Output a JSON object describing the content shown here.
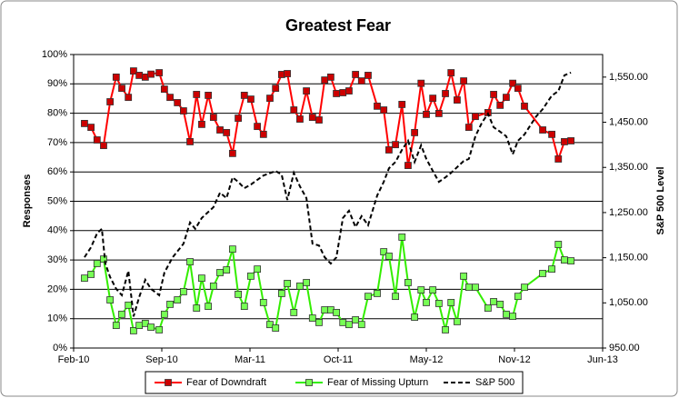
{
  "chart_data": {
    "type": "line",
    "title": "Greatest Fear",
    "y_label": "Responses",
    "y2_label": "S&P 500 Level",
    "x": [
      40235,
      40250,
      40264,
      40279,
      40294,
      40308,
      40321,
      40336,
      40348,
      40361,
      40375,
      40388,
      40407,
      40419,
      40432,
      40449,
      40463,
      40478,
      40493,
      40505,
      40520,
      40532,
      40547,
      40562,
      40576,
      40589,
      40603,
      40618,
      40633,
      40647,
      40662,
      40675,
      40689,
      40702,
      40717,
      40731,
      40746,
      40760,
      40775,
      40788,
      40802,
      40815,
      40830,
      40844,
      40859,
      40873,
      40888,
      40909,
      40924,
      40936,
      40951,
      40966,
      40980,
      40995,
      41010,
      41022,
      41037,
      41051,
      41066,
      41079,
      41093,
      41108,
      41120,
      41135,
      41164,
      41177,
      41192,
      41206,
      41221,
      41233,
      41248,
      41290,
      41311,
      41326,
      41340,
      41355
    ],
    "xlim": [
      40210,
      41428
    ],
    "xticks": [
      {
        "value": 40210,
        "label": "Feb-10"
      },
      {
        "value": 40413,
        "label": "Sep-10"
      },
      {
        "value": 40616,
        "label": "Mar-11"
      },
      {
        "value": 40819,
        "label": "Oct-11"
      },
      {
        "value": 41022,
        "label": "May-12"
      },
      {
        "value": 41225,
        "label": "Nov-12"
      },
      {
        "value": 41428,
        "label": "Jun-13"
      }
    ],
    "ylim": [
      0,
      100
    ],
    "yticks": [
      {
        "value": 0,
        "label": "0%"
      },
      {
        "value": 10,
        "label": "10%"
      },
      {
        "value": 20,
        "label": "20%"
      },
      {
        "value": 30,
        "label": "30%"
      },
      {
        "value": 40,
        "label": "40%"
      },
      {
        "value": 50,
        "label": "50%"
      },
      {
        "value": 60,
        "label": "60%"
      },
      {
        "value": 70,
        "label": "70%"
      },
      {
        "value": 80,
        "label": "80%"
      },
      {
        "value": 90,
        "label": "90%"
      },
      {
        "value": 100,
        "label": "100%"
      }
    ],
    "y2lim": [
      950,
      1600
    ],
    "y2ticks": [
      {
        "value": 950,
        "label": "950.00"
      },
      {
        "value": 1050,
        "label": "1,050.00"
      },
      {
        "value": 1150,
        "label": "1,150.00"
      },
      {
        "value": 1250,
        "label": "1,250.00"
      },
      {
        "value": 1350,
        "label": "1,350.00"
      },
      {
        "value": 1450,
        "label": "1,450.00"
      },
      {
        "value": 1550,
        "label": "1,550.00"
      }
    ],
    "grid": true,
    "legend": "bottom",
    "series": [
      {
        "name": "Fear of Downdraft",
        "color": "#ff0000",
        "marker_color": "#cc0000",
        "values": [
          76.5,
          75.2,
          70.9,
          69,
          83.9,
          92.3,
          88.5,
          85.4,
          94.4,
          92.9,
          92.3,
          93.3,
          93.8,
          88.2,
          85.4,
          83.6,
          80.8,
          70.3,
          86.4,
          76.2,
          86.1,
          78.6,
          74.3,
          73.4,
          66.3,
          78.3,
          86.1,
          84.8,
          75.5,
          72.8,
          85.1,
          88.5,
          93.2,
          93.5,
          81.1,
          78,
          87.6,
          78.6,
          77.7,
          91.3,
          92.3,
          86.7,
          87,
          87.6,
          93.2,
          91,
          92.9,
          82.4,
          81.1,
          67.5,
          69.3,
          83,
          62.2,
          73.4,
          90.2,
          79.6,
          85.1,
          79.9,
          86.7,
          93.8,
          84.5,
          91,
          75.2,
          78.9,
          80.2,
          86.4,
          82.7,
          85.4,
          90.2,
          88.5,
          82.4,
          74.3,
          72.8,
          64.4,
          70.3,
          70.6
        ]
      },
      {
        "name": "Fear of Missing Upturn",
        "color": "#33ee00",
        "marker_color": "#77ff55",
        "values": [
          23.8,
          25.1,
          28.8,
          30.3,
          16.4,
          7.7,
          11.5,
          14.6,
          5.9,
          7.7,
          8.4,
          7.1,
          6.2,
          11.5,
          14.9,
          16.4,
          19.2,
          29.4,
          13.6,
          23.8,
          14.2,
          21.1,
          25.7,
          26.6,
          33.7,
          18.3,
          14.2,
          24.5,
          26.9,
          15.5,
          8,
          6.8,
          18.6,
          22,
          12.1,
          21.1,
          22.3,
          10.2,
          8.7,
          13,
          13,
          12.1,
          8.7,
          8,
          9.6,
          8,
          17.6,
          18.6,
          32.8,
          31.3,
          17.6,
          37.8,
          22.3,
          10.5,
          19.8,
          15.5,
          19.8,
          15.2,
          6.2,
          15.5,
          9,
          24.5,
          20.7,
          20.7,
          13.6,
          15.8,
          14.9,
          11.5,
          10.8,
          17.6,
          20.7,
          25.4,
          26.9,
          35.3,
          30,
          29.7
        ]
      },
      {
        "name": "S&P 500",
        "color": "#000000",
        "axis": "y2",
        "dashed": true,
        "x": [
          40235,
          40250,
          40264,
          40275,
          40283,
          40294,
          40308,
          40321,
          40336,
          40348,
          40361,
          40375,
          40388,
          40407,
          40419,
          40438,
          40463,
          40478,
          40490,
          40505,
          40532,
          40547,
          40562,
          40576,
          40589,
          40603,
          40618,
          40647,
          40675,
          40689,
          40702,
          40717,
          40731,
          40746,
          40760,
          40775,
          40788,
          40802,
          40815,
          40830,
          40844,
          40859,
          40873,
          40888,
          40909,
          40924,
          40936,
          40951,
          40966,
          40980,
          40995,
          41010,
          41022,
          41037,
          41051,
          41066,
          41079,
          41108,
          41120,
          41135,
          41150,
          41164,
          41177,
          41192,
          41206,
          41221,
          41233,
          41248,
          41275,
          41290,
          41311,
          41326,
          41340,
          41355
        ],
        "values": [
          1151,
          1173,
          1204,
          1214,
          1137,
          1107,
          1081,
          1067,
          1121,
          1020,
          1063,
          1101,
          1081,
          1067,
          1117,
          1151,
          1181,
          1228,
          1214,
          1238,
          1262,
          1294,
          1282,
          1328,
          1318,
          1304,
          1312,
          1332,
          1342,
          1334,
          1278,
          1338,
          1308,
          1282,
          1181,
          1177,
          1151,
          1137,
          1151,
          1238,
          1254,
          1218,
          1242,
          1222,
          1288,
          1318,
          1348,
          1362,
          1389,
          1409,
          1362,
          1399,
          1369,
          1342,
          1318,
          1328,
          1338,
          1364,
          1369,
          1419,
          1449,
          1469,
          1439,
          1429,
          1419,
          1379,
          1409,
          1423,
          1463,
          1479,
          1509,
          1519,
          1554,
          1560
        ]
      }
    ]
  }
}
